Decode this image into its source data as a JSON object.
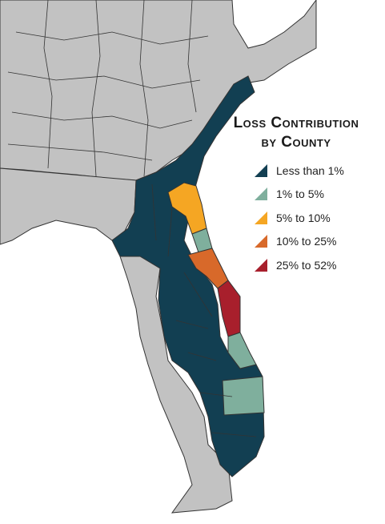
{
  "legend": {
    "title_line1": "Loss Contribution",
    "title_line2": "by County",
    "items": [
      {
        "label": "Less than 1%",
        "color": "#123f52"
      },
      {
        "label": "1% to 5%",
        "color": "#7faf9d"
      },
      {
        "label": "5% to 10%",
        "color": "#f5a623"
      },
      {
        "label": "10% to 25%",
        "color": "#d8692a"
      },
      {
        "label": "25% to 52%",
        "color": "#a81f2c"
      }
    ]
  },
  "colors": {
    "land": "#c2c2c2",
    "border": "#333333",
    "water": "#ffffff"
  }
}
